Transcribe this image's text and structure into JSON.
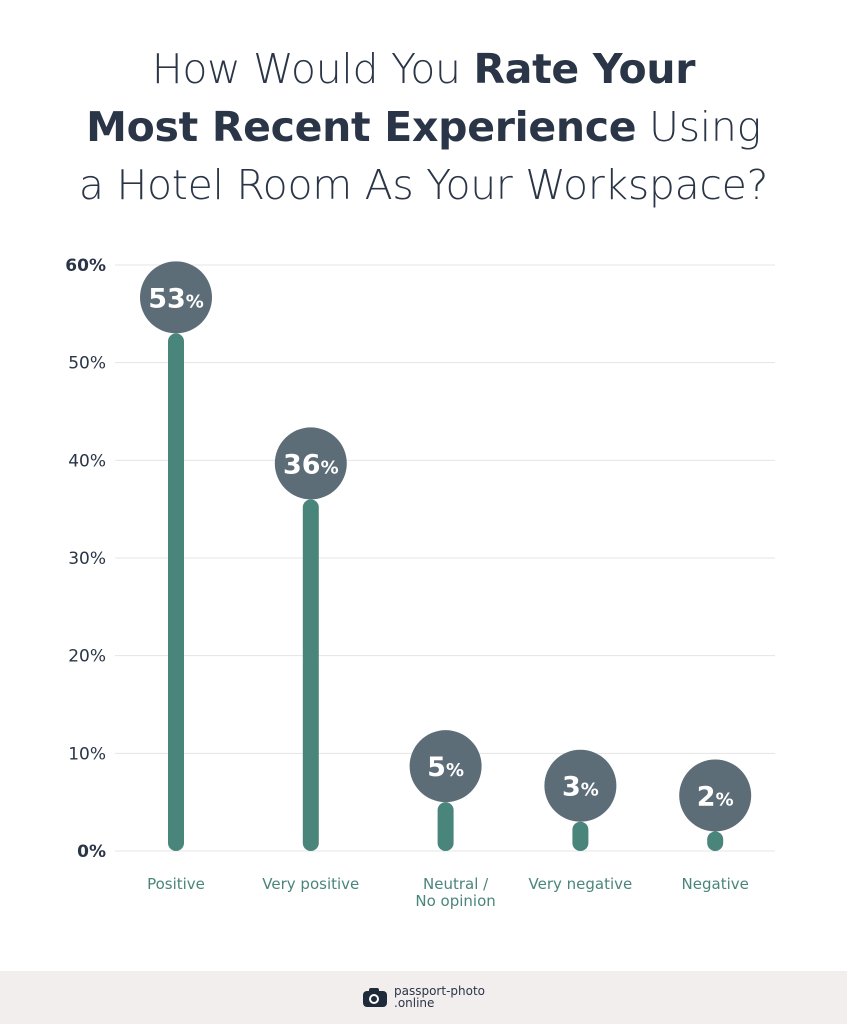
{
  "title": {
    "line1_light": "How Would You ",
    "line1_bold": "Rate Your",
    "line2_bold": "Most Recent Experience",
    "line2_light": " Using",
    "line3_light": "a Hotel Room As Your Workspace?"
  },
  "chart_data": {
    "type": "bar",
    "style": "lollipop",
    "categories": [
      "Positive",
      "Very positive",
      "Neutral / No opinion",
      "Very negative",
      "Negative"
    ],
    "category_lines": [
      [
        "Positive"
      ],
      [
        "Very positive"
      ],
      [
        "Neutral /",
        "No opinion"
      ],
      [
        "Very negative"
      ],
      [
        "Negative"
      ]
    ],
    "values": [
      53,
      36,
      5,
      3,
      2
    ],
    "data_labels": [
      "53",
      "36",
      "5",
      "3",
      "2"
    ],
    "data_label_suffix": "%",
    "ylim": [
      0,
      60
    ],
    "yticks": [
      "0%",
      "10%",
      "20%",
      "30%",
      "40%",
      "50%",
      "60%"
    ],
    "ytick_values": [
      0,
      10,
      20,
      30,
      40,
      50,
      60
    ],
    "grid": true,
    "colors": {
      "bar": "#4a857b",
      "bubble": "#5d6d78",
      "grid": "#e4e4e4",
      "label": "#4a857b",
      "axis_text": "#2a3547"
    }
  },
  "footer": {
    "brand_line1": "passport-photo",
    "brand_line2": ".online",
    "icon": "camera-icon"
  }
}
